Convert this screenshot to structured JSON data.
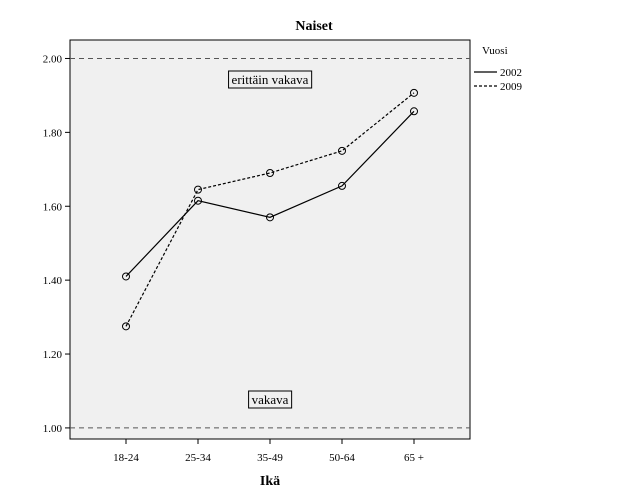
{
  "chart_data": {
    "type": "line",
    "title": "Naiset",
    "xlabel": "Ikä",
    "ylabel": "",
    "categories": [
      "18-24",
      "25-34",
      "35-49",
      "50-64",
      "65 +"
    ],
    "ylim": [
      0.97,
      2.05
    ],
    "yticks": [
      1.0,
      1.2,
      1.4,
      1.6,
      1.8,
      2.0
    ],
    "ytick_labels": [
      "1.00",
      "1.20",
      "1.40",
      "1.60",
      "1.80",
      "2.00"
    ],
    "grid": false,
    "reference_lines": [
      {
        "value": 2.0,
        "label": "erittäin vakava"
      },
      {
        "value": 1.0,
        "label": "vakava"
      }
    ],
    "legend": {
      "title": "Vuosi",
      "placement": "right"
    },
    "series": [
      {
        "name": "2002",
        "style": "solid",
        "values": [
          1.41,
          1.615,
          1.57,
          1.655,
          1.857
        ]
      },
      {
        "name": "2009",
        "style": "dashed",
        "values": [
          1.275,
          1.645,
          1.69,
          1.75,
          1.907
        ]
      }
    ],
    "colors": {
      "plot_background": "#f0f0f0",
      "line": "#000000"
    }
  }
}
